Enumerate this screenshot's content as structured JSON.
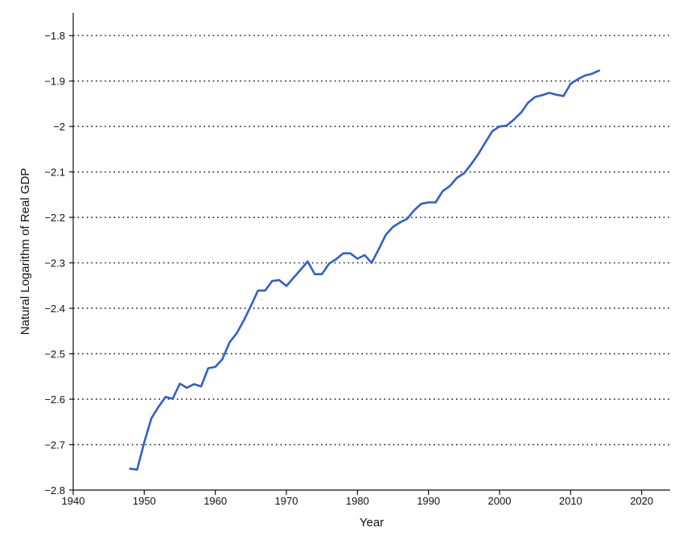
{
  "chart_data": {
    "type": "line",
    "title": "",
    "xlabel": "Year",
    "ylabel": "Natural Logarithm of Real GDP",
    "xlim": [
      1940,
      2024
    ],
    "ylim": [
      -2.8,
      -1.75
    ],
    "x_ticks": [
      1940,
      1950,
      1960,
      1970,
      1980,
      1990,
      2000,
      2010,
      2020
    ],
    "x_tick_labels": [
      "1940",
      "1950",
      "1960",
      "1970",
      "1980",
      "1990",
      "2000",
      "2010",
      "2020"
    ],
    "y_ticks": [
      -1.8,
      -1.9,
      -2,
      -2.1,
      -2.2,
      -2.3,
      -2.4,
      -2.5,
      -2.6,
      -2.7,
      -2.8
    ],
    "y_tick_labels": [
      "−1.8",
      "−1.9",
      "−2",
      "−2.1",
      "−2.2",
      "−2.3",
      "−2.4",
      "−2.5",
      "−2.6",
      "−2.7",
      "−2.8"
    ],
    "grid": "horizontal dotted",
    "legend": "none",
    "line_color": "#2f5fcf",
    "series": [
      {
        "x": [
          1948,
          1949,
          1950,
          1951,
          1952,
          1953,
          1954,
          1955,
          1956,
          1957,
          1958,
          1959,
          1960,
          1961,
          1962,
          1963,
          1964,
          1965,
          1966,
          1967,
          1968,
          1969,
          1970,
          1971,
          1972,
          1973,
          1974,
          1975,
          1976,
          1977,
          1978,
          1979,
          1980,
          1981,
          1982,
          1983,
          1984,
          1985,
          1986,
          1987,
          1988,
          1989,
          1990,
          1991,
          1992,
          1993,
          1994,
          1995,
          1996,
          1997,
          1998,
          1999,
          2000,
          2001,
          2002,
          2003,
          2004,
          2005,
          2006,
          2007,
          2008,
          2009,
          2010,
          2011,
          2012,
          2013,
          2014
        ],
        "y": [
          -2.753,
          -2.755,
          -2.695,
          -2.642,
          -2.617,
          -2.595,
          -2.599,
          -2.566,
          -2.575,
          -2.567,
          -2.572,
          -2.532,
          -2.529,
          -2.512,
          -2.475,
          -2.455,
          -2.427,
          -2.395,
          -2.361,
          -2.361,
          -2.34,
          -2.338,
          -2.351,
          -2.333,
          -2.315,
          -2.297,
          -2.325,
          -2.325,
          -2.302,
          -2.292,
          -2.279,
          -2.279,
          -2.291,
          -2.283,
          -2.3,
          -2.27,
          -2.238,
          -2.221,
          -2.211,
          -2.203,
          -2.184,
          -2.17,
          -2.167,
          -2.167,
          -2.142,
          -2.131,
          -2.113,
          -2.103,
          -2.083,
          -2.061,
          -2.035,
          -2.01,
          -2.0,
          -1.998,
          -1.985,
          -1.97,
          -1.948,
          -1.935,
          -1.931,
          -1.926,
          -1.93,
          -1.933,
          -1.906,
          -1.896,
          -1.888,
          -1.884,
          -1.877
        ]
      }
    ]
  }
}
